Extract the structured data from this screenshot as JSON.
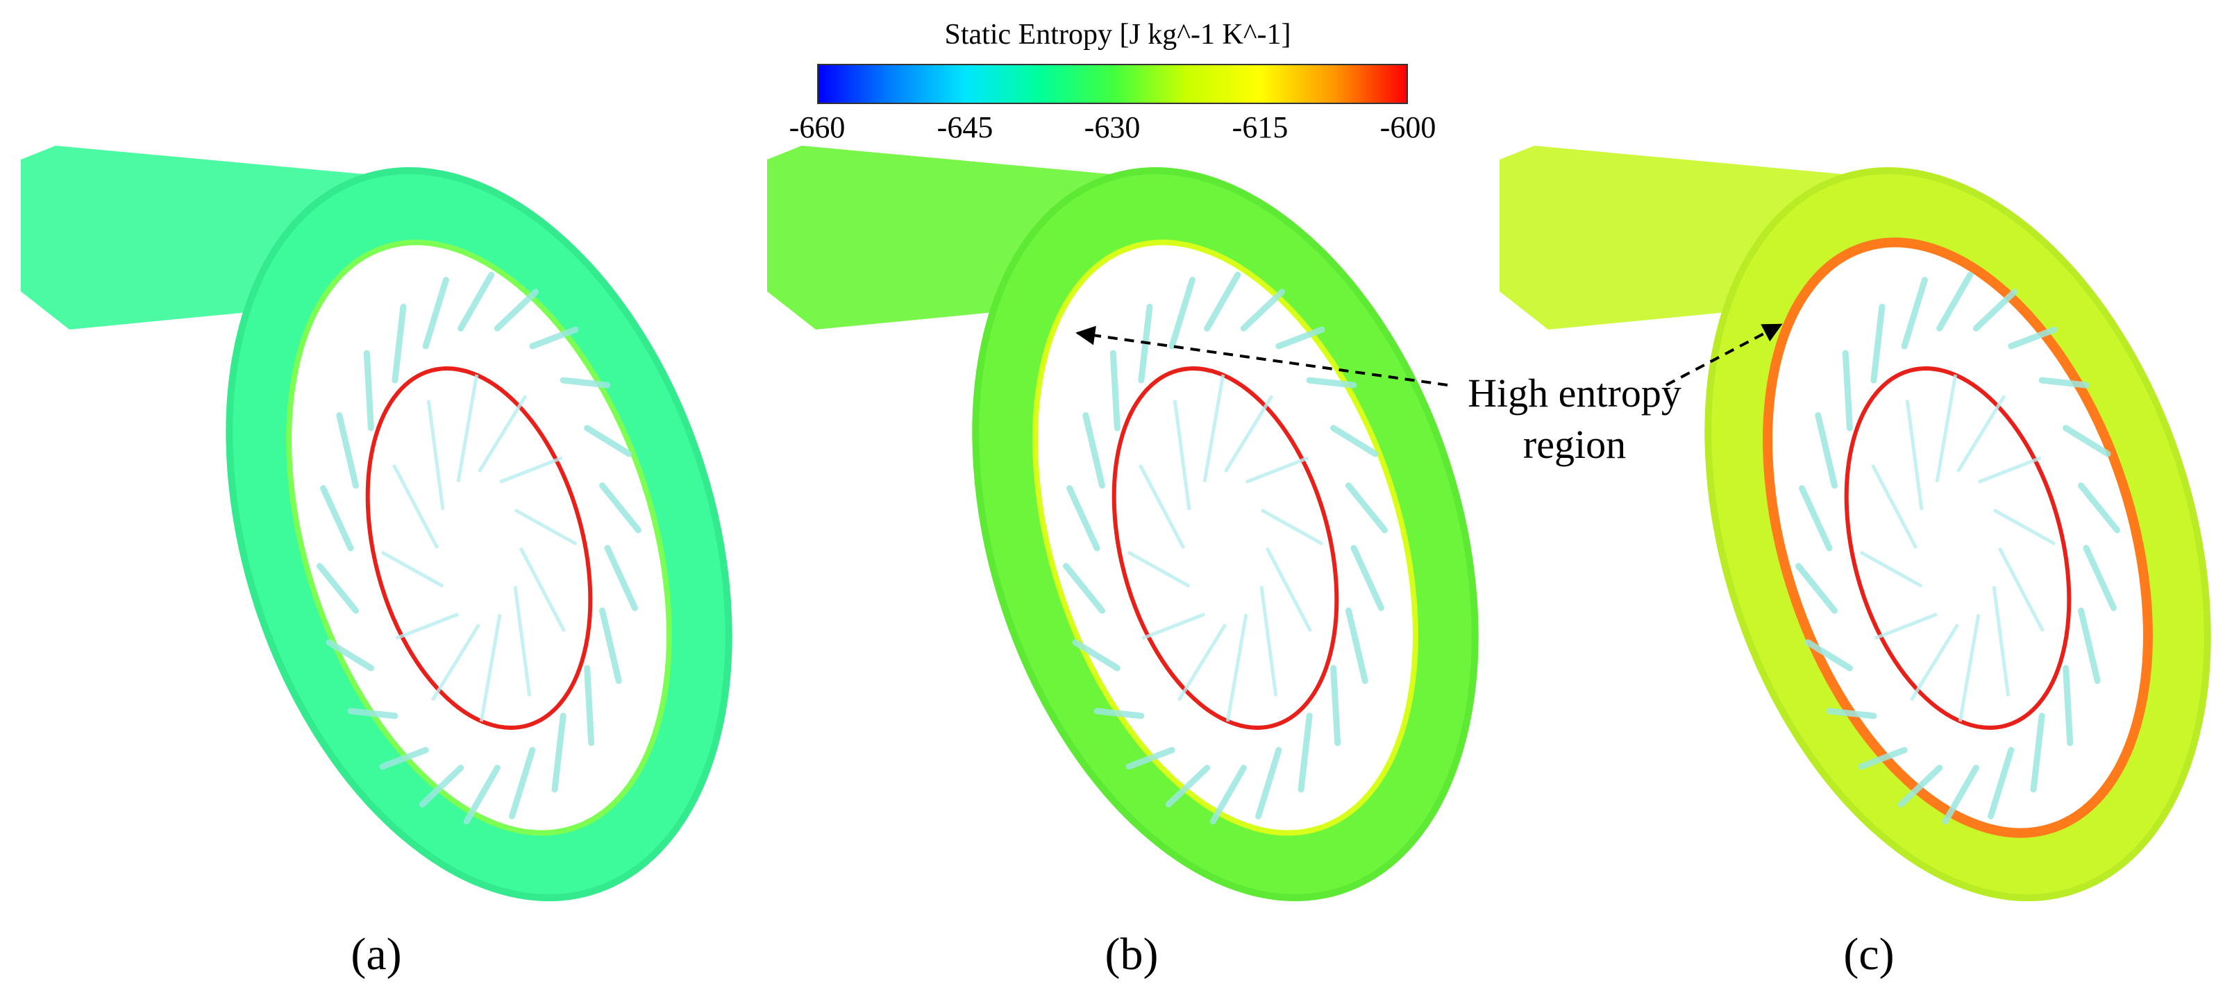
{
  "colorbar": {
    "title": "Static Entropy [J kg^-1 K^-1]",
    "ticks": [
      "-660",
      "-645",
      "-630",
      "-615",
      "-600"
    ],
    "range": [
      -660,
      -600
    ],
    "stops": [
      "#0000ff",
      "#0080ff",
      "#00e6ff",
      "#00ff9a",
      "#40ff40",
      "#c8ff00",
      "#ffff00",
      "#ff9900",
      "#ff0000"
    ]
  },
  "panels": [
    {
      "label": "(a)",
      "fill": "#3dfa9b",
      "shade": "#33ea8e",
      "accent": "#7cff52"
    },
    {
      "label": "(b)",
      "fill": "#6cf53a",
      "shade": "#5ee934",
      "accent": "#d8ff1a"
    },
    {
      "label": "(c)",
      "fill": "#c9f72a",
      "shade": "#b9ec24",
      "accent": "#ff7a1a"
    }
  ],
  "annotation": {
    "line1": "High entropy",
    "line2": "region"
  }
}
